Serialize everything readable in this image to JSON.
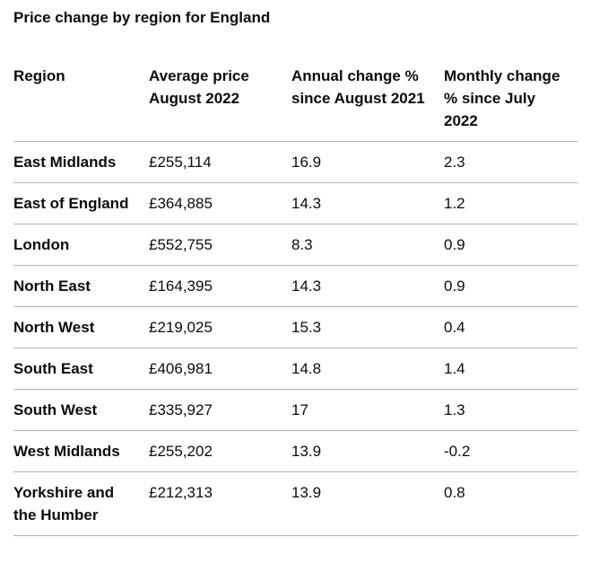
{
  "table": {
    "caption": "Price change by region for England",
    "headers": [
      "Region",
      "Average price August 2022",
      "Annual change % since August 2021",
      "Monthly change % since July 2022"
    ],
    "rows": [
      {
        "region": "East Midlands",
        "average_price": "£255,114",
        "annual_change": "16.9",
        "monthly_change": "2.3"
      },
      {
        "region": "East of England",
        "average_price": "£364,885",
        "annual_change": "14.3",
        "monthly_change": "1.2"
      },
      {
        "region": "London",
        "average_price": "£552,755",
        "annual_change": "8.3",
        "monthly_change": "0.9"
      },
      {
        "region": "North East",
        "average_price": "£164,395",
        "annual_change": "14.3",
        "monthly_change": "0.9"
      },
      {
        "region": "North West",
        "average_price": "£219,025",
        "annual_change": "15.3",
        "monthly_change": "0.4"
      },
      {
        "region": "South East",
        "average_price": "£406,981",
        "annual_change": "14.8",
        "monthly_change": "1.4"
      },
      {
        "region": "South West",
        "average_price": "£335,927",
        "annual_change": "17",
        "monthly_change": "1.3"
      },
      {
        "region": "West Midlands",
        "average_price": "£255,202",
        "annual_change": "13.9",
        "monthly_change": "-0.2"
      },
      {
        "region": "Yorkshire and the Humber",
        "average_price": "£212,313",
        "annual_change": "13.9",
        "monthly_change": "0.8"
      }
    ]
  }
}
